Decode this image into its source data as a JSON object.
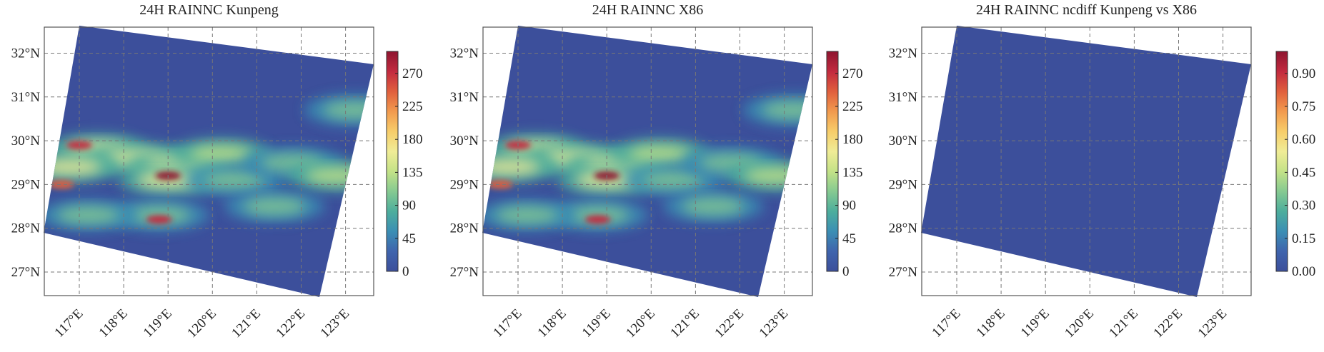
{
  "chart_data": [
    {
      "type": "heatmap",
      "title": "24H RAINNC Kunpeng",
      "x_ticks": [
        "117°E",
        "118°E",
        "119°E",
        "120°E",
        "121°E",
        "122°E",
        "123°E"
      ],
      "y_ticks": [
        "27°N",
        "28°N",
        "29°N",
        "30°N",
        "31°N",
        "32°N"
      ],
      "colorbar": {
        "min": 0,
        "max": 300,
        "ticks": [
          "0",
          "45",
          "90",
          "135",
          "180",
          "225",
          "270"
        ]
      },
      "field": "precipitation",
      "rain_bands": [
        {
          "lon": 117.4,
          "lat": 29.8,
          "value": 160
        },
        {
          "lon": 118.3,
          "lat": 29.6,
          "value": 150
        },
        {
          "lon": 119.2,
          "lat": 29.45,
          "value": 170
        },
        {
          "lon": 119.0,
          "lat": 29.1,
          "value": 160
        },
        {
          "lon": 120.2,
          "lat": 29.7,
          "value": 130
        },
        {
          "lon": 120.5,
          "lat": 29.1,
          "value": 110
        },
        {
          "lon": 121.8,
          "lat": 29.5,
          "value": 110
        },
        {
          "lon": 122.8,
          "lat": 29.2,
          "value": 130
        },
        {
          "lon": 123.2,
          "lat": 30.7,
          "value": 115
        },
        {
          "lon": 121.4,
          "lat": 28.5,
          "value": 120
        },
        {
          "lon": 118.8,
          "lat": 28.3,
          "value": 110
        },
        {
          "lon": 117.2,
          "lat": 28.3,
          "value": 100
        },
        {
          "lon": 116.8,
          "lat": 29.4,
          "value": 170
        }
      ],
      "rain_peaks": [
        {
          "lon": 117.0,
          "lat": 29.9,
          "value": 280
        },
        {
          "lon": 119.0,
          "lat": 29.2,
          "value": 300
        },
        {
          "lon": 118.8,
          "lat": 28.2,
          "value": 270
        },
        {
          "lon": 116.6,
          "lat": 29.0,
          "value": 240
        }
      ]
    },
    {
      "type": "heatmap",
      "title": "24H RAINNC X86",
      "x_ticks": [
        "117°E",
        "118°E",
        "119°E",
        "120°E",
        "121°E",
        "122°E",
        "123°E"
      ],
      "y_ticks": [
        "27°N",
        "28°N",
        "29°N",
        "30°N",
        "31°N",
        "32°N"
      ],
      "colorbar": {
        "min": 0,
        "max": 300,
        "ticks": [
          "0",
          "45",
          "90",
          "135",
          "180",
          "225",
          "270"
        ]
      },
      "field": "precipitation",
      "rain_bands": [
        {
          "lon": 117.4,
          "lat": 29.8,
          "value": 160
        },
        {
          "lon": 118.3,
          "lat": 29.6,
          "value": 150
        },
        {
          "lon": 119.2,
          "lat": 29.45,
          "value": 170
        },
        {
          "lon": 119.0,
          "lat": 29.1,
          "value": 160
        },
        {
          "lon": 120.2,
          "lat": 29.7,
          "value": 130
        },
        {
          "lon": 120.5,
          "lat": 29.1,
          "value": 110
        },
        {
          "lon": 121.8,
          "lat": 29.5,
          "value": 110
        },
        {
          "lon": 122.8,
          "lat": 29.2,
          "value": 130
        },
        {
          "lon": 123.2,
          "lat": 30.7,
          "value": 115
        },
        {
          "lon": 121.4,
          "lat": 28.5,
          "value": 120
        },
        {
          "lon": 118.8,
          "lat": 28.3,
          "value": 110
        },
        {
          "lon": 117.2,
          "lat": 28.3,
          "value": 100
        },
        {
          "lon": 116.8,
          "lat": 29.4,
          "value": 170
        }
      ],
      "rain_peaks": [
        {
          "lon": 117.0,
          "lat": 29.9,
          "value": 280
        },
        {
          "lon": 119.0,
          "lat": 29.2,
          "value": 300
        },
        {
          "lon": 118.8,
          "lat": 28.2,
          "value": 270
        },
        {
          "lon": 116.6,
          "lat": 29.0,
          "value": 240
        }
      ]
    },
    {
      "type": "heatmap",
      "title": "24H RAINNC ncdiff Kunpeng vs X86",
      "x_ticks": [
        "117°E",
        "118°E",
        "119°E",
        "120°E",
        "121°E",
        "122°E",
        "123°E"
      ],
      "y_ticks": [
        "27°N",
        "28°N",
        "29°N",
        "30°N",
        "31°N",
        "32°N"
      ],
      "colorbar": {
        "min": 0,
        "max": 1.0,
        "ticks": [
          "0.00",
          "0.15",
          "0.30",
          "0.45",
          "0.60",
          "0.75",
          "0.90"
        ]
      },
      "field": "difference",
      "uniform_value": 0.0
    }
  ],
  "colormap": [
    "#3c4f9b",
    "#3f64ad",
    "#3b8fb4",
    "#4dae9c",
    "#86ca91",
    "#c4e287",
    "#f0ec96",
    "#f7cd6a",
    "#f29a4e",
    "#e05f3d",
    "#c22a3f",
    "#8e1530"
  ],
  "grid": "dashed",
  "background": "#ffffff"
}
